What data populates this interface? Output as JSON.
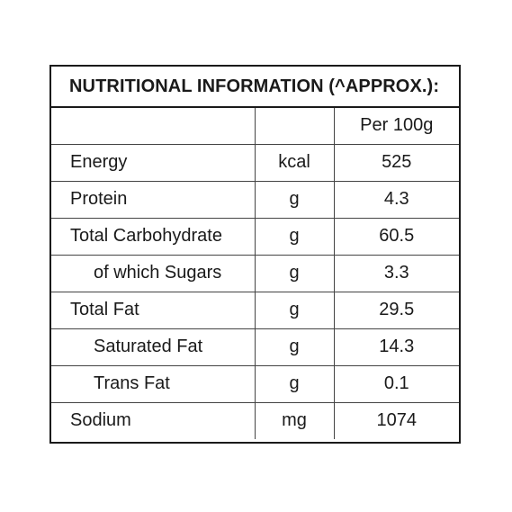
{
  "title": "NUTRITIONAL INFORMATION (^APPROX.):",
  "header": {
    "name": "",
    "unit": "",
    "value": "Per 100g"
  },
  "rows": [
    {
      "name": "Energy",
      "unit": "kcal",
      "value": "525"
    },
    {
      "name": "Protein",
      "unit": "g",
      "value": "4.3"
    },
    {
      "name": "Total Carbohydrate",
      "unit": "g",
      "value": "60.5"
    },
    {
      "name": "of which Sugars",
      "unit": "g",
      "value": "3.3"
    },
    {
      "name": "Total Fat",
      "unit": "g",
      "value": "29.5"
    },
    {
      "name": "Saturated Fat",
      "unit": "g",
      "value": "14.3"
    },
    {
      "name": "Trans Fat",
      "unit": "g",
      "value": "0.1"
    },
    {
      "name": "Sodium",
      "unit": "mg",
      "value": "1074"
    }
  ]
}
